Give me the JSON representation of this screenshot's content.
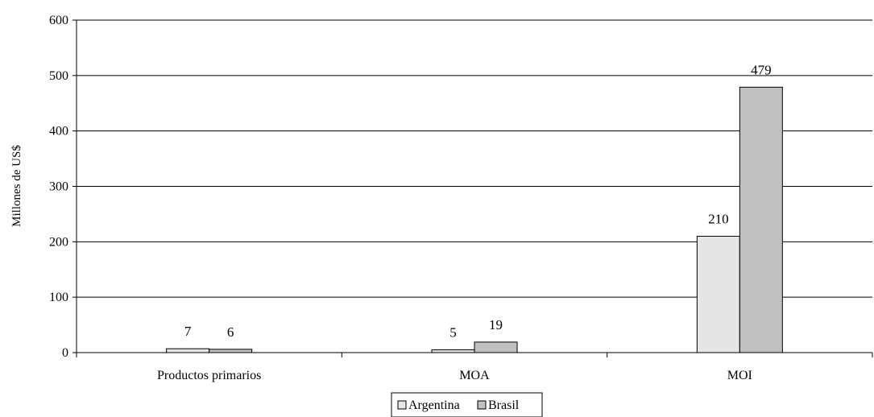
{
  "chart_data": {
    "type": "bar",
    "ylabel": "Millones de US$",
    "xlabel": "",
    "title": "",
    "categories": [
      "Productos primarios",
      "MOA",
      "MOI"
    ],
    "series": [
      {
        "name": "Argentina",
        "values": [
          7,
          5,
          210
        ],
        "color": "#e6e6e6"
      },
      {
        "name": "Brasil",
        "values": [
          6,
          19,
          479
        ],
        "color": "#c0c0c0"
      }
    ],
    "ylim": [
      0,
      600
    ],
    "yticks": [
      0,
      100,
      200,
      300,
      400,
      500,
      600
    ],
    "grid": true,
    "legend_position": "bottom"
  }
}
